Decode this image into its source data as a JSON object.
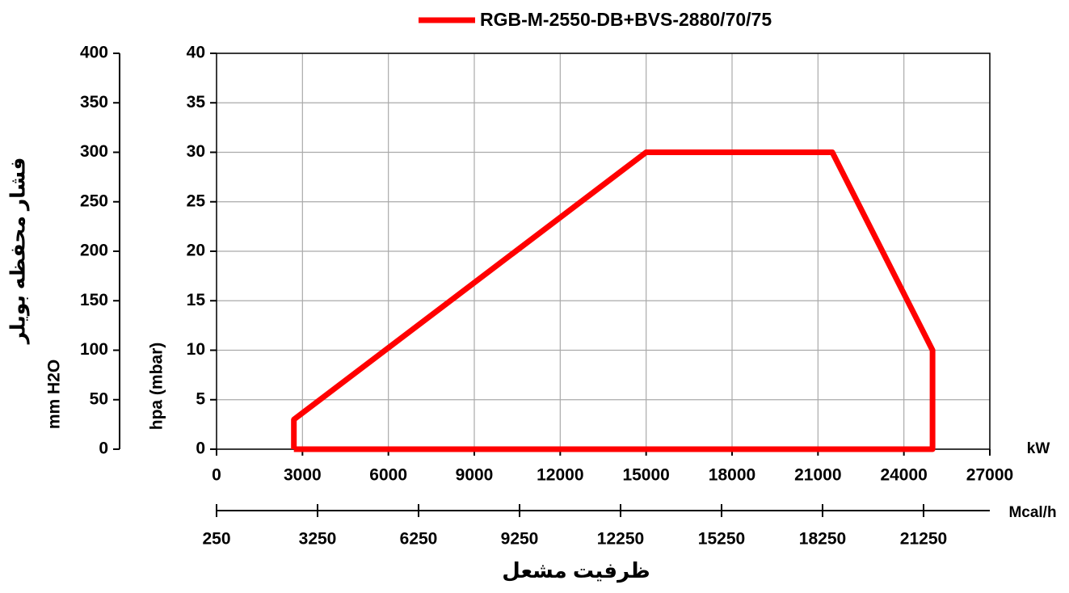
{
  "chart_data": {
    "type": "line",
    "series": [
      {
        "name": "RGB-M-2550-DB+BVS-2880/70/75",
        "color": "#ff0000",
        "x": [
          2700,
          2700,
          15000,
          21500,
          25000,
          25000,
          2700
        ],
        "values": [
          0,
          3,
          30,
          30,
          10,
          0,
          0
        ]
      }
    ],
    "xlim": [
      0,
      27000
    ],
    "xticks": [
      0,
      3000,
      6000,
      9000,
      12000,
      15000,
      18000,
      21000,
      24000,
      27000
    ],
    "x_label": "kW",
    "x2lim": [
      250,
      23218
    ],
    "x2ticks": [
      250,
      3250,
      6250,
      9250,
      12250,
      15250,
      18250,
      21250
    ],
    "x2_label": "Mcal/h",
    "x_title": "ظرفیت مشعل",
    "ylim": [
      0,
      40
    ],
    "yticks": [
      0,
      5,
      10,
      15,
      20,
      25,
      30,
      35,
      40
    ],
    "y_label": "hpa (mbar)",
    "y2lim": [
      0,
      400
    ],
    "y2ticks": [
      0,
      50,
      100,
      150,
      200,
      250,
      300,
      350,
      400
    ],
    "y2_label": "mm H2O",
    "y2_title": "فشار محفظه بویلر",
    "grid": true,
    "legend": "top"
  }
}
